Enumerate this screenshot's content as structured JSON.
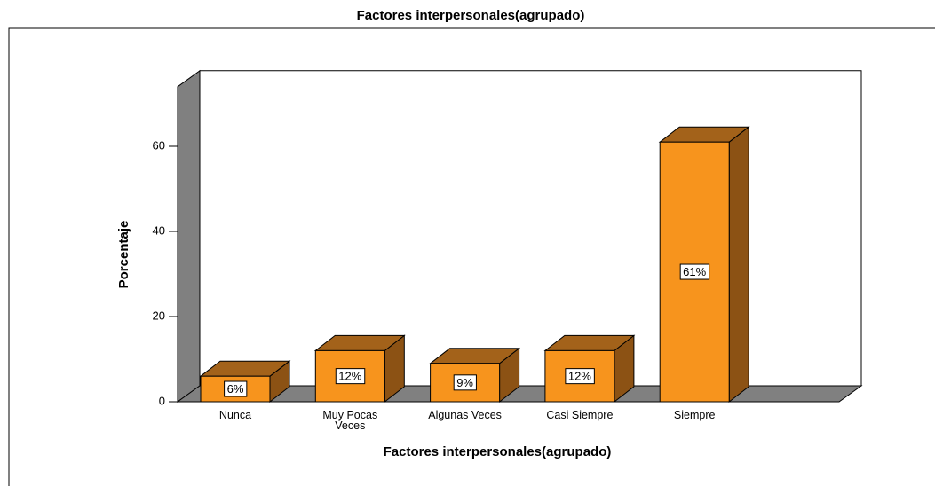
{
  "chart_data": {
    "type": "bar3d",
    "title": "Factores interpersonales(agrupado)",
    "x_label": "Factores interpersonales(agrupado)",
    "y_label": "Porcentaje",
    "categories": [
      "Nunca",
      "Muy Pocas Veces",
      "Algunas Veces",
      "Casi Siempre",
      "Siempre"
    ],
    "values": [
      6,
      12,
      9,
      12,
      61
    ],
    "value_labels": [
      "6%",
      "12%",
      "9%",
      "12%",
      "61%"
    ],
    "color": "#f7941d",
    "ylim": [
      0,
      74
    ],
    "yticks": [
      0,
      20,
      40,
      60
    ]
  }
}
